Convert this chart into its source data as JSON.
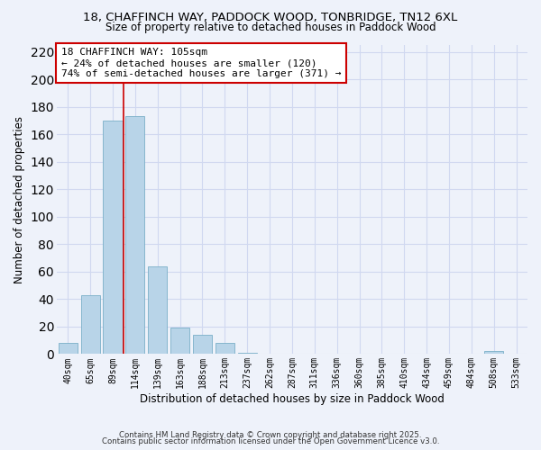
{
  "title_line1": "18, CHAFFINCH WAY, PADDOCK WOOD, TONBRIDGE, TN12 6XL",
  "title_line2": "Size of property relative to detached houses in Paddock Wood",
  "xlabel": "Distribution of detached houses by size in Paddock Wood",
  "ylabel": "Number of detached properties",
  "bar_labels": [
    "40sqm",
    "65sqm",
    "89sqm",
    "114sqm",
    "139sqm",
    "163sqm",
    "188sqm",
    "213sqm",
    "237sqm",
    "262sqm",
    "287sqm",
    "311sqm",
    "336sqm",
    "360sqm",
    "385sqm",
    "410sqm",
    "434sqm",
    "459sqm",
    "484sqm",
    "508sqm",
    "533sqm"
  ],
  "bar_values": [
    8,
    43,
    170,
    173,
    64,
    19,
    14,
    8,
    1,
    0,
    0,
    0,
    0,
    0,
    0,
    0,
    0,
    0,
    0,
    2,
    0
  ],
  "bar_color": "#b8d4e8",
  "bar_edge_color": "#7aafc8",
  "ylim": [
    0,
    225
  ],
  "yticks": [
    0,
    20,
    40,
    60,
    80,
    100,
    120,
    140,
    160,
    180,
    200,
    220
  ],
  "vline_x_index": 3,
  "vline_color": "#cc0000",
  "annotation_text": "18 CHAFFINCH WAY: 105sqm\n← 24% of detached houses are smaller (120)\n74% of semi-detached houses are larger (371) →",
  "bg_color": "#eef2fa",
  "grid_color": "#d0d8f0",
  "footer_line1": "Contains HM Land Registry data © Crown copyright and database right 2025.",
  "footer_line2": "Contains public sector information licensed under the Open Government Licence v3.0."
}
